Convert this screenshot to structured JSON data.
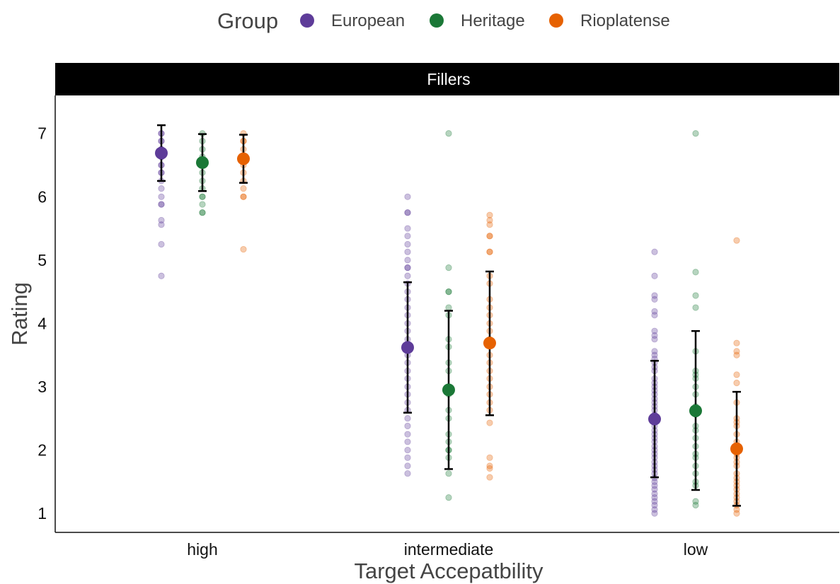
{
  "chart_data": {
    "type": "scatter",
    "facet_label": "Fillers",
    "xlabel": "Target Accepatbility",
    "ylabel": "Rating",
    "ylim": [
      0.7,
      7.6
    ],
    "yticks": [
      1,
      2,
      3,
      4,
      5,
      6,
      7
    ],
    "categories": [
      "high",
      "intermediate",
      "low"
    ],
    "legend": {
      "title": "Group",
      "position": "top"
    },
    "grid": false,
    "series": [
      {
        "name": "European",
        "color": "#5e3c99",
        "summary": [
          {
            "x": "high",
            "mean": 6.69,
            "lower": 6.25,
            "upper": 7.13
          },
          {
            "x": "intermediate",
            "mean": 3.62,
            "lower": 2.59,
            "upper": 4.65
          },
          {
            "x": "low",
            "mean": 2.49,
            "lower": 1.57,
            "upper": 3.41
          }
        ],
        "points": {
          "high": [
            7.0,
            7.0,
            6.88,
            6.88,
            6.75,
            6.75,
            6.63,
            6.63,
            6.5,
            6.5,
            6.38,
            6.38,
            6.25,
            6.13,
            6.0,
            5.88,
            5.88,
            5.63,
            5.56,
            5.25,
            4.75
          ],
          "intermediate": [
            6.0,
            5.75,
            5.75,
            5.5,
            5.38,
            5.25,
            5.13,
            5.0,
            4.88,
            4.88,
            4.75,
            4.63,
            4.5,
            4.38,
            4.25,
            4.13,
            4.0,
            3.88,
            3.75,
            3.63,
            3.5,
            3.38,
            3.25,
            3.13,
            3.0,
            2.88,
            2.75,
            2.63,
            2.5,
            2.38,
            2.25,
            2.13,
            2.0,
            1.88,
            1.75,
            1.63
          ],
          "low": [
            5.13,
            4.75,
            4.44,
            4.38,
            4.19,
            4.13,
            3.88,
            3.81,
            3.75,
            3.56,
            3.5,
            3.44,
            3.38,
            3.31,
            3.25,
            3.13,
            3.06,
            3.0,
            2.94,
            2.88,
            2.81,
            2.75,
            2.69,
            2.63,
            2.56,
            2.5,
            2.44,
            2.38,
            2.31,
            2.25,
            2.19,
            2.13,
            2.06,
            2.0,
            1.94,
            1.88,
            1.81,
            1.75,
            1.69,
            1.63,
            1.56,
            1.5,
            1.44,
            1.38,
            1.31,
            1.25,
            1.19,
            1.13,
            1.06,
            1.0
          ]
        }
      },
      {
        "name": "Heritage",
        "color": "#1b7837",
        "summary": [
          {
            "x": "high",
            "mean": 6.54,
            "lower": 6.09,
            "upper": 6.99
          },
          {
            "x": "intermediate",
            "mean": 2.95,
            "lower": 1.7,
            "upper": 4.2
          },
          {
            "x": "low",
            "mean": 2.62,
            "lower": 1.37,
            "upper": 3.88
          }
        ],
        "points": {
          "high": [
            7.0,
            6.88,
            6.75,
            6.63,
            6.5,
            6.38,
            6.25,
            6.13,
            6.0,
            6.0,
            5.88,
            5.75,
            5.75
          ],
          "intermediate": [
            7.0,
            4.88,
            4.5,
            4.5,
            4.25,
            4.13,
            3.75,
            3.63,
            3.38,
            3.25,
            3.0,
            2.88,
            2.63,
            2.5,
            2.25,
            2.13,
            2.0,
            2.0,
            1.88,
            1.63,
            1.25
          ],
          "low": [
            7.0,
            4.81,
            4.44,
            4.25,
            3.56,
            3.25,
            3.19,
            3.13,
            3.0,
            2.88,
            2.69,
            2.56,
            2.38,
            2.31,
            2.19,
            2.06,
            1.94,
            1.88,
            1.75,
            1.63,
            1.5,
            1.44,
            1.19,
            1.13
          ]
        }
      },
      {
        "name": "Rioplatense",
        "color": "#e66101",
        "summary": [
          {
            "x": "high",
            "mean": 6.6,
            "lower": 6.22,
            "upper": 6.98
          },
          {
            "x": "intermediate",
            "mean": 3.69,
            "lower": 2.55,
            "upper": 4.82
          },
          {
            "x": "low",
            "mean": 2.02,
            "lower": 1.12,
            "upper": 2.92
          }
        ],
        "points": {
          "high": [
            7.0,
            6.88,
            6.88,
            6.75,
            6.63,
            6.5,
            6.38,
            6.25,
            6.13,
            6.0,
            6.0,
            5.17
          ],
          "intermediate": [
            5.71,
            5.63,
            5.56,
            5.38,
            5.38,
            5.13,
            5.13,
            4.75,
            4.63,
            4.38,
            4.25,
            4.13,
            4.0,
            3.88,
            3.75,
            3.5,
            3.38,
            3.25,
            3.13,
            3.0,
            2.88,
            2.75,
            2.63,
            2.43,
            1.88,
            1.75,
            1.71,
            1.57
          ],
          "low": [
            5.31,
            3.69,
            3.56,
            3.5,
            3.19,
            3.06,
            2.75,
            2.5,
            2.44,
            2.38,
            2.25,
            2.13,
            2.06,
            1.94,
            1.88,
            1.81,
            1.75,
            1.63,
            1.56,
            1.5,
            1.44,
            1.38,
            1.31,
            1.25,
            1.19,
            1.13,
            1.06,
            1.0
          ]
        }
      }
    ]
  }
}
